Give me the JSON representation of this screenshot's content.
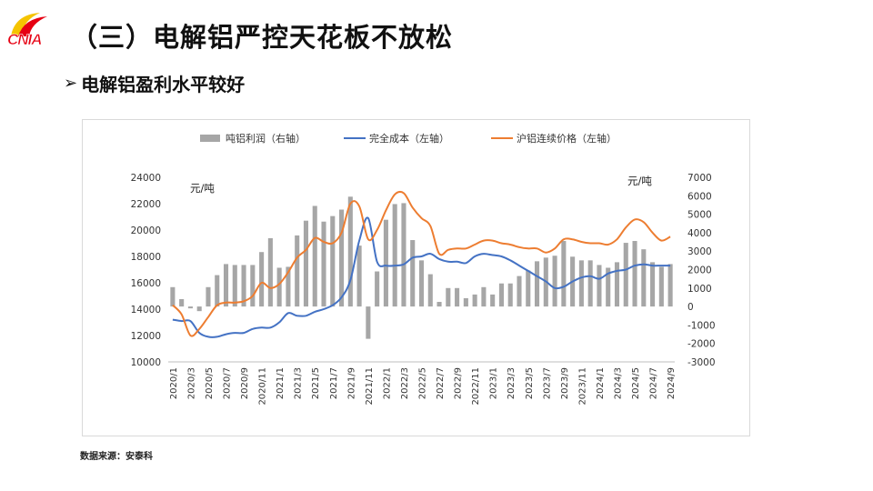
{
  "logo": {
    "text": "CNIA",
    "colors": {
      "red": "#e60012",
      "yellow": "#f5c400"
    }
  },
  "title": "（三）电解铝严控天花板不放松",
  "subtitle": {
    "marker": "➢",
    "text": "电解铝盈利水平较好"
  },
  "source": "数据来源：安泰科",
  "chart_data": {
    "type": "bar+line",
    "left_axis": {
      "label": "元/吨",
      "ylim": [
        10000,
        24000
      ],
      "ticks": [
        10000,
        12000,
        14000,
        16000,
        18000,
        20000,
        22000,
        24000
      ]
    },
    "right_axis": {
      "label": "元/吨",
      "ylim": [
        -3000,
        7000
      ],
      "ticks": [
        -3000,
        -2000,
        -1000,
        0,
        1000,
        2000,
        3000,
        4000,
        5000,
        6000,
        7000
      ]
    },
    "x_tick_labels": [
      "2020/1",
      "2020/3",
      "2020/5",
      "2020/7",
      "2020/9",
      "2020/11",
      "2021/1",
      "2021/3",
      "2021/5",
      "2021/7",
      "2021/9",
      "2021/11",
      "2022/1",
      "2022/3",
      "2022/5",
      "2022/7",
      "2022/9",
      "2022/11",
      "2023/1",
      "2023/3",
      "2023/5",
      "2023/7",
      "2023/9",
      "2023/11",
      "2024/1",
      "2024/3",
      "2024/5",
      "2024/7",
      "2024/9"
    ],
    "months": [
      "2020/1",
      "2020/2",
      "2020/3",
      "2020/4",
      "2020/5",
      "2020/6",
      "2020/7",
      "2020/8",
      "2020/9",
      "2020/10",
      "2020/11",
      "2020/12",
      "2021/1",
      "2021/2",
      "2021/3",
      "2021/4",
      "2021/5",
      "2021/6",
      "2021/7",
      "2021/8",
      "2021/9",
      "2021/10",
      "2021/11",
      "2021/12",
      "2022/1",
      "2022/2",
      "2022/3",
      "2022/4",
      "2022/5",
      "2022/6",
      "2022/7",
      "2022/8",
      "2022/9",
      "2022/10",
      "2022/11",
      "2022/12",
      "2023/1",
      "2023/2",
      "2023/3",
      "2023/4",
      "2023/5",
      "2023/6",
      "2023/7",
      "2023/8",
      "2023/9",
      "2023/10",
      "2023/11",
      "2023/12",
      "2024/1",
      "2024/2",
      "2024/3",
      "2024/4",
      "2024/5",
      "2024/6",
      "2024/7",
      "2024/8",
      "2024/9"
    ],
    "series": [
      {
        "name": "吨铝利润（右轴）",
        "kind": "bar",
        "axis": "right",
        "color": "#a6a6a6",
        "values": [
          1050,
          400,
          -100,
          -250,
          1050,
          1700,
          2300,
          2250,
          2250,
          2250,
          2950,
          3700,
          2100,
          2150,
          3850,
          4650,
          5450,
          4600,
          4900,
          5250,
          5950,
          3300,
          -1750,
          1900,
          4700,
          5550,
          5600,
          3600,
          2500,
          1750,
          250,
          1000,
          1000,
          450,
          650,
          1050,
          650,
          1250,
          1250,
          1650,
          1950,
          2450,
          2650,
          2750,
          3550,
          2700,
          2500,
          2500,
          2250,
          2100,
          2400,
          3450,
          3550,
          3100,
          2400,
          2150,
          2300
        ]
      },
      {
        "name": "完全成本（左轴）",
        "kind": "line",
        "axis": "left",
        "color": "#4472c4",
        "values": [
          13200,
          13100,
          13100,
          12200,
          11900,
          11900,
          12100,
          12200,
          12200,
          12500,
          12600,
          12600,
          13000,
          13700,
          13500,
          13500,
          13800,
          14000,
          14300,
          14900,
          16200,
          19200,
          20900,
          17600,
          17300,
          17300,
          17400,
          17900,
          18000,
          18200,
          17800,
          17600,
          17600,
          17500,
          18000,
          18200,
          18100,
          18000,
          17700,
          17300,
          16900,
          16500,
          16100,
          15600,
          15700,
          16100,
          16400,
          16500,
          16300,
          16700,
          16900,
          17000,
          17300,
          17400,
          17300,
          17300,
          17300
        ]
      },
      {
        "name": "沪铝连续价格（左轴）",
        "kind": "line",
        "axis": "left",
        "color": "#ed7d31",
        "values": [
          14300,
          13600,
          12000,
          12500,
          13400,
          14300,
          14500,
          14500,
          14600,
          15000,
          16000,
          15600,
          15900,
          16800,
          17900,
          18500,
          19400,
          19100,
          19000,
          19800,
          22000,
          21800,
          19300,
          20000,
          21500,
          22700,
          22800,
          21700,
          20900,
          20300,
          18200,
          18500,
          18600,
          18600,
          18900,
          19200,
          19200,
          19000,
          18900,
          18700,
          18600,
          18600,
          18300,
          18600,
          19300,
          19300,
          19100,
          19000,
          19000,
          18900,
          19300,
          20200,
          20800,
          20600,
          19800,
          19200,
          19500
        ]
      }
    ]
  }
}
